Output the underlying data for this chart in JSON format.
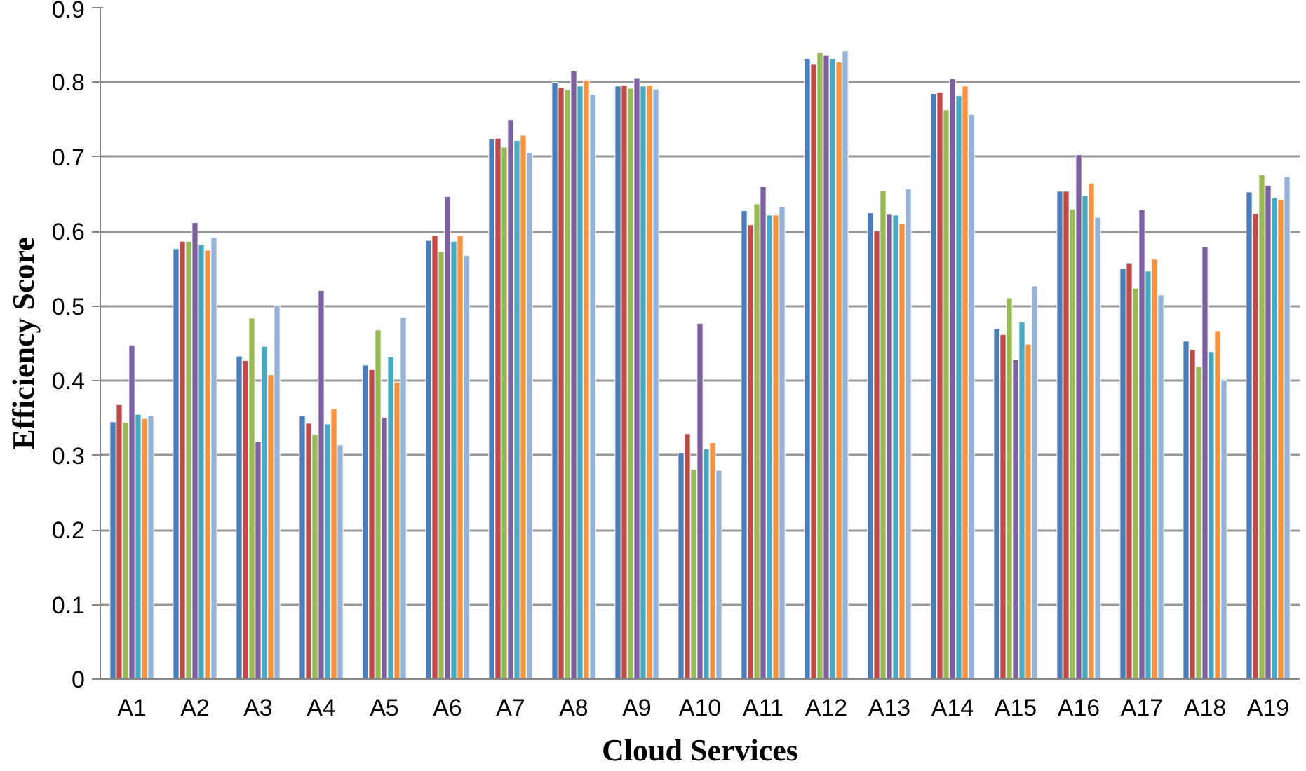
{
  "chart_data": {
    "type": "bar",
    "xlabel": "Cloud Services",
    "ylabel": "Efficiency Score",
    "categories": [
      "A1",
      "A2",
      "A3",
      "A4",
      "A5",
      "A6",
      "A7",
      "A8",
      "A9",
      "A10",
      "A11",
      "A12",
      "A13",
      "A14",
      "A15",
      "A16",
      "A17",
      "A18",
      "A19"
    ],
    "ylim": [
      0,
      0.9
    ],
    "yticks": [
      0,
      0.1,
      0.2,
      0.3,
      0.4,
      0.5,
      0.6,
      0.7,
      0.8,
      0.9
    ],
    "grid": "y",
    "series": [
      {
        "color": "#4a7ebb",
        "values": [
          0.345,
          0.577,
          0.433,
          0.353,
          0.421,
          0.588,
          0.724,
          0.8,
          0.795,
          0.303,
          0.628,
          0.832,
          0.625,
          0.785,
          0.47,
          0.654,
          0.55,
          0.453,
          0.653
        ]
      },
      {
        "color": "#be4b48",
        "values": [
          0.368,
          0.587,
          0.427,
          0.343,
          0.415,
          0.595,
          0.725,
          0.793,
          0.796,
          0.329,
          0.609,
          0.824,
          0.601,
          0.787,
          0.462,
          0.654,
          0.558,
          0.442,
          0.624
        ]
      },
      {
        "color": "#98b954",
        "values": [
          0.344,
          0.587,
          0.484,
          0.328,
          0.468,
          0.573,
          0.713,
          0.79,
          0.792,
          0.281,
          0.637,
          0.84,
          0.655,
          0.763,
          0.511,
          0.63,
          0.524,
          0.419,
          0.676
        ]
      },
      {
        "color": "#7d60a0",
        "values": [
          0.448,
          0.612,
          0.318,
          0.521,
          0.351,
          0.647,
          0.75,
          0.815,
          0.806,
          0.477,
          0.66,
          0.836,
          0.623,
          0.805,
          0.428,
          0.703,
          0.629,
          0.58,
          0.662
        ]
      },
      {
        "color": "#46aac5",
        "values": [
          0.355,
          0.582,
          0.446,
          0.342,
          0.432,
          0.587,
          0.722,
          0.795,
          0.795,
          0.309,
          0.622,
          0.832,
          0.622,
          0.782,
          0.479,
          0.648,
          0.547,
          0.439,
          0.645
        ]
      },
      {
        "color": "#f69240",
        "values": [
          0.349,
          0.575,
          0.408,
          0.362,
          0.398,
          0.595,
          0.729,
          0.803,
          0.796,
          0.317,
          0.622,
          0.827,
          0.61,
          0.795,
          0.449,
          0.665,
          0.563,
          0.467,
          0.643
        ]
      },
      {
        "color": "#95b3d7",
        "values": [
          0.353,
          0.592,
          0.501,
          0.314,
          0.485,
          0.568,
          0.706,
          0.784,
          0.791,
          0.28,
          0.633,
          0.842,
          0.657,
          0.757,
          0.527,
          0.619,
          0.515,
          0.401,
          0.674
        ]
      }
    ]
  }
}
